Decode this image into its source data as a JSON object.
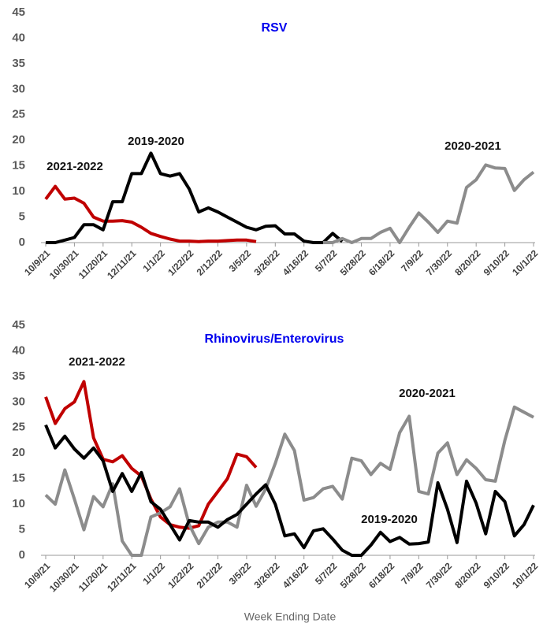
{
  "chart_data": [
    {
      "type": "line",
      "title": "RSV",
      "categories": [
        "10/9/21",
        null,
        null,
        "10/30/21",
        null,
        null,
        "11/20/21",
        null,
        null,
        "12/11/21",
        null,
        null,
        "1/1/22",
        null,
        null,
        "1/22/22",
        null,
        null,
        "2/12/22",
        null,
        null,
        "3/5/22",
        null,
        null,
        "3/26/22",
        null,
        null,
        "4/16/22",
        null,
        null,
        "5/7/22",
        null,
        null,
        "5/28/22",
        null,
        null,
        "6/18/22",
        null,
        null,
        "7/9/22",
        null,
        null,
        "7/30/22",
        null,
        null,
        "8/20/22",
        null,
        null,
        "9/10/22",
        null,
        null,
        "10/1/22"
      ],
      "series": [
        {
          "name": "2021-2022",
          "color": "#c00000",
          "values": [
            8.5,
            11,
            8.5,
            8.7,
            7.7,
            5,
            4.2,
            4.2,
            4.3,
            4,
            3,
            1.8,
            1.2,
            0.7,
            0.3,
            0.3,
            0.2,
            0.3,
            0.3,
            0.4,
            0.5,
            0.5,
            0.2,
            null,
            null,
            null,
            null,
            null,
            null,
            null,
            null,
            null,
            null,
            null,
            null,
            null,
            null,
            null,
            null,
            null,
            null,
            null,
            null,
            null,
            null,
            null,
            null,
            null,
            null,
            null,
            null,
            null
          ]
        },
        {
          "name": "2019-2020",
          "color": "#000000",
          "values": [
            0,
            0,
            0.5,
            1,
            3.5,
            3.5,
            2.5,
            8,
            8,
            13.5,
            13.5,
            17.5,
            13.5,
            13,
            13.5,
            10.5,
            6,
            6.8,
            6,
            5,
            4,
            3,
            2.5,
            3.2,
            3.3,
            1.7,
            1.7,
            0.3,
            0,
            0,
            1.8,
            0.2,
            null,
            null,
            null,
            null,
            null,
            null,
            null,
            null,
            null,
            null,
            null,
            null,
            null,
            null,
            null,
            null,
            null,
            null,
            null,
            null
          ]
        },
        {
          "name": "2020-2021",
          "color": "#8c8c8c",
          "values": [
            null,
            null,
            null,
            null,
            null,
            null,
            null,
            null,
            null,
            null,
            null,
            null,
            null,
            null,
            null,
            null,
            null,
            null,
            null,
            null,
            null,
            null,
            null,
            null,
            null,
            null,
            null,
            null,
            null,
            0,
            0,
            0.8,
            0,
            0.8,
            0.8,
            2,
            2.8,
            0,
            3,
            5.8,
            4,
            2,
            4.2,
            3.8,
            10.8,
            12.3,
            15.2,
            14.6,
            14.5,
            10.2,
            12.3,
            13.8
          ]
        }
      ],
      "ylim": [
        0,
        45
      ],
      "yticks": [
        0,
        5,
        10,
        15,
        20,
        25,
        30,
        35,
        40,
        45
      ]
    },
    {
      "type": "line",
      "title": "Rhinovirus/Enterovirus",
      "categories": [
        "10/9/21",
        null,
        null,
        "10/30/21",
        null,
        null,
        "11/20/21",
        null,
        null,
        "12/11/21",
        null,
        null,
        "1/1/22",
        null,
        null,
        "1/22/22",
        null,
        null,
        "2/12/22",
        null,
        null,
        "3/5/22",
        null,
        null,
        "3/26/22",
        null,
        null,
        "4/16/22",
        null,
        null,
        "5/7/22",
        null,
        null,
        "5/28/22",
        null,
        null,
        "6/18/22",
        null,
        null,
        "7/9/22",
        null,
        null,
        "7/30/22",
        null,
        null,
        "8/20/22",
        null,
        null,
        "9/10/22",
        null,
        null,
        "10/1/22"
      ],
      "series": [
        {
          "name": "2021-2022",
          "color": "#c00000",
          "values": [
            31,
            25.8,
            28.7,
            30,
            34,
            23,
            18.8,
            18.3,
            19.5,
            17,
            15.5,
            11,
            7.5,
            6,
            5.5,
            5.3,
            5.8,
            10,
            12.5,
            15,
            19.8,
            19.3,
            17.2,
            null,
            null,
            null,
            null,
            null,
            null,
            null,
            null,
            null,
            null,
            null,
            null,
            null,
            null,
            null,
            null,
            null,
            null,
            null,
            null,
            null,
            null,
            null,
            null,
            null,
            null,
            null,
            null,
            null
          ]
        },
        {
          "name": "2020-2021",
          "color": "#8c8c8c",
          "values": [
            11.8,
            10,
            16.7,
            11,
            5,
            11.5,
            9.5,
            14,
            2.8,
            0,
            0,
            7.5,
            8.3,
            9.5,
            13,
            6,
            2.3,
            5.5,
            6.5,
            6.5,
            5.5,
            13.7,
            9.6,
            13,
            18,
            23.7,
            20.5,
            10.8,
            11.3,
            13,
            13.5,
            11,
            19,
            18.5,
            15.8,
            18,
            16.8,
            24,
            27.2,
            12.5,
            12,
            20,
            22,
            15.8,
            18.7,
            17,
            14.8,
            14.5,
            22.5,
            29,
            28,
            27
          ]
        },
        {
          "name": "2019-2020",
          "color": "#000000",
          "values": [
            25.5,
            21,
            23.3,
            20.8,
            19,
            21,
            18.5,
            12.5,
            16,
            12.5,
            16.2,
            10.5,
            9,
            6,
            3,
            6.8,
            6.5,
            6.5,
            5.5,
            7,
            8,
            10,
            12,
            13.8,
            10,
            3.8,
            4.2,
            1.5,
            4.8,
            5.2,
            3.2,
            1,
            0,
            0,
            2,
            4.5,
            2.7,
            3.5,
            2.2,
            2.3,
            2.6,
            14.2,
            9,
            2.5,
            14.5,
            10.2,
            4.2,
            12.5,
            10.5,
            3.8,
            6,
            9.8
          ]
        }
      ],
      "ylim": [
        0,
        45
      ],
      "yticks": [
        0,
        5,
        10,
        15,
        20,
        25,
        30,
        35,
        40,
        45
      ],
      "x_label": "Week Ending Date"
    }
  ]
}
